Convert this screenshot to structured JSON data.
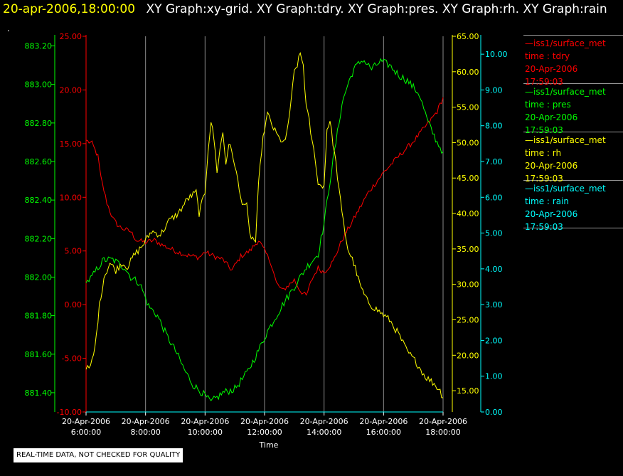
{
  "header": {
    "timestamp": "20-apr-2006,18:00:00",
    "graphs": [
      "XY Graph:xy-grid.",
      "XY Graph:tdry.",
      "XY Graph:pres.",
      "XY Graph:rh.",
      "XY Graph:rain"
    ],
    "marker": "."
  },
  "legend": [
    {
      "label": "iss1/surface_met",
      "var": "time : tdry",
      "date": "20-Apr-2006",
      "time": "17:59:03",
      "color": "#ff0000"
    },
    {
      "label": "iss1/surface_met",
      "var": "time : pres",
      "date": "20-Apr-2006",
      "time": "17:59:03",
      "color": "#00ff00"
    },
    {
      "label": "iss1/surface_met",
      "var": "time : rh",
      "date": "20-Apr-2006",
      "time": "17:59:03",
      "color": "#ffff00"
    },
    {
      "label": "iss1/surface_met",
      "var": "time : rain",
      "date": "20-Apr-2006",
      "time": "17:59:03",
      "color": "#00ffff"
    }
  ],
  "footer": "REAL-TIME DATA, NOT CHECKED FOR QUALITY",
  "chart_data": {
    "type": "line",
    "xlabel": "Time",
    "x_ticks": [
      {
        "date": "20-Apr-2006",
        "time": "6:00:00"
      },
      {
        "date": "20-Apr-2006",
        "time": "8:00:00"
      },
      {
        "date": "20-Apr-2006",
        "time": "10:00:00"
      },
      {
        "date": "20-Apr-2006",
        "time": "12:00:00"
      },
      {
        "date": "20-Apr-2006",
        "time": "14:00:00"
      },
      {
        "date": "20-Apr-2006",
        "time": "16:00:00"
      },
      {
        "date": "20-Apr-2006",
        "time": "18:00:00"
      }
    ],
    "x_range_hours": [
      6,
      18
    ],
    "grid": "vertical",
    "axes": {
      "tdry": {
        "color": "#ff0000",
        "range": [
          -10,
          25
        ],
        "ticks": [
          "25.00",
          "20.00",
          "15.00",
          "10.00",
          "5.00",
          "0.00",
          "-5.00",
          "-10.00"
        ]
      },
      "pres": {
        "color": "#00ff00",
        "range": [
          881.3,
          883.25
        ],
        "ticks": [
          "883.20",
          "883.00",
          "882.80",
          "882.60",
          "882.40",
          "882.20",
          "882.00",
          "881.80",
          "881.60",
          "881.40"
        ]
      },
      "rh": {
        "color": "#ffff00",
        "range": [
          12,
          65
        ],
        "ticks": [
          "65.00",
          "60.00",
          "55.00",
          "50.00",
          "45.00",
          "40.00",
          "35.00",
          "30.00",
          "25.00",
          "20.00",
          "15.00"
        ]
      },
      "rain": {
        "color": "#00ffff",
        "range": [
          0,
          10.5
        ],
        "ticks": [
          "10.00",
          "9.00",
          "8.00",
          "7.00",
          "6.00",
          "5.00",
          "4.00",
          "3.00",
          "2.00",
          "1.00",
          "0.00"
        ]
      }
    },
    "series": [
      {
        "name": "tdry",
        "color": "#ff0000",
        "points": [
          [
            6.0,
            15.3
          ],
          [
            6.2,
            15.0
          ],
          [
            6.4,
            13.8
          ],
          [
            6.5,
            11.8
          ],
          [
            6.7,
            9.5
          ],
          [
            6.9,
            8.0
          ],
          [
            7.1,
            7.3
          ],
          [
            7.3,
            7.0
          ],
          [
            7.5,
            6.8
          ],
          [
            7.7,
            6.0
          ],
          [
            8.0,
            5.8
          ],
          [
            8.3,
            6.0
          ],
          [
            8.6,
            5.5
          ],
          [
            9.0,
            5.0
          ],
          [
            9.4,
            4.6
          ],
          [
            9.8,
            4.4
          ],
          [
            10.0,
            4.9
          ],
          [
            10.3,
            4.5
          ],
          [
            10.6,
            4.2
          ],
          [
            10.9,
            3.2
          ],
          [
            11.2,
            4.5
          ],
          [
            11.5,
            5.0
          ],
          [
            11.8,
            6.0
          ],
          [
            12.0,
            5.0
          ],
          [
            12.2,
            4.0
          ],
          [
            12.4,
            2.0
          ],
          [
            12.6,
            1.3
          ],
          [
            12.8,
            1.8
          ],
          [
            13.0,
            2.3
          ],
          [
            13.2,
            1.3
          ],
          [
            13.4,
            0.8
          ],
          [
            13.6,
            2.4
          ],
          [
            13.8,
            3.4
          ],
          [
            14.0,
            3.0
          ],
          [
            14.3,
            4.0
          ],
          [
            14.6,
            6.0
          ],
          [
            15.0,
            8.0
          ],
          [
            15.5,
            10.5
          ],
          [
            16.0,
            12.3
          ],
          [
            16.5,
            13.8
          ],
          [
            17.0,
            15.2
          ],
          [
            17.5,
            16.9
          ],
          [
            17.8,
            18.0
          ],
          [
            18.0,
            19.3
          ]
        ]
      },
      {
        "name": "pres",
        "color": "#00ff00",
        "points": [
          [
            6.0,
            881.97
          ],
          [
            6.2,
            882.0
          ],
          [
            6.4,
            882.05
          ],
          [
            6.6,
            882.09
          ],
          [
            6.9,
            882.09
          ],
          [
            7.1,
            882.07
          ],
          [
            7.3,
            882.05
          ],
          [
            7.5,
            882.0
          ],
          [
            7.8,
            881.97
          ],
          [
            8.1,
            881.85
          ],
          [
            8.4,
            881.8
          ],
          [
            8.7,
            881.7
          ],
          [
            9.0,
            881.62
          ],
          [
            9.3,
            881.52
          ],
          [
            9.6,
            881.44
          ],
          [
            9.9,
            881.4
          ],
          [
            10.2,
            881.35
          ],
          [
            10.6,
            881.4
          ],
          [
            11.0,
            881.42
          ],
          [
            11.4,
            881.5
          ],
          [
            11.8,
            881.62
          ],
          [
            12.1,
            881.72
          ],
          [
            12.4,
            881.8
          ],
          [
            12.7,
            881.88
          ],
          [
            13.0,
            881.95
          ],
          [
            13.4,
            882.05
          ],
          [
            13.8,
            882.12
          ],
          [
            14.0,
            882.28
          ],
          [
            14.2,
            882.5
          ],
          [
            14.4,
            882.7
          ],
          [
            14.6,
            882.9
          ],
          [
            14.8,
            883.0
          ],
          [
            15.0,
            883.08
          ],
          [
            15.3,
            883.13
          ],
          [
            15.6,
            883.08
          ],
          [
            15.9,
            883.12
          ],
          [
            16.2,
            883.1
          ],
          [
            16.5,
            883.05
          ],
          [
            16.8,
            883.02
          ],
          [
            17.2,
            882.95
          ],
          [
            17.5,
            882.8
          ],
          [
            17.8,
            882.7
          ],
          [
            18.0,
            882.65
          ]
        ]
      },
      {
        "name": "rh",
        "color": "#ffff00",
        "points": [
          [
            6.0,
            18.0
          ],
          [
            6.15,
            18.3
          ],
          [
            6.3,
            21.0
          ],
          [
            6.45,
            27.0
          ],
          [
            6.6,
            31.0
          ],
          [
            6.8,
            33.0
          ],
          [
            7.0,
            32.0
          ],
          [
            7.2,
            33.0
          ],
          [
            7.4,
            32.5
          ],
          [
            7.6,
            34.0
          ],
          [
            7.9,
            35.5
          ],
          [
            8.2,
            37.5
          ],
          [
            8.5,
            37.0
          ],
          [
            8.8,
            39.0
          ],
          [
            9.1,
            40.0
          ],
          [
            9.4,
            42.0
          ],
          [
            9.7,
            43.0
          ],
          [
            9.8,
            40.0
          ],
          [
            10.0,
            43.0
          ],
          [
            10.1,
            49.0
          ],
          [
            10.2,
            53.0
          ],
          [
            10.3,
            50.5
          ],
          [
            10.4,
            46.0
          ],
          [
            10.5,
            49.0
          ],
          [
            10.6,
            51.5
          ],
          [
            10.7,
            47.0
          ],
          [
            10.8,
            50.0
          ],
          [
            11.0,
            47.0
          ],
          [
            11.2,
            42.0
          ],
          [
            11.4,
            41.0
          ],
          [
            11.5,
            37.0
          ],
          [
            11.7,
            36.0
          ],
          [
            11.8,
            44.0
          ],
          [
            11.9,
            49.0
          ],
          [
            12.0,
            52.0
          ],
          [
            12.1,
            54.0
          ],
          [
            12.3,
            52.0
          ],
          [
            12.5,
            50.5
          ],
          [
            12.7,
            50.0
          ],
          [
            12.9,
            56.0
          ],
          [
            13.0,
            60.0
          ],
          [
            13.1,
            61.0
          ],
          [
            13.2,
            62.5
          ],
          [
            13.3,
            61.0
          ],
          [
            13.4,
            55.0
          ],
          [
            13.5,
            53.0
          ],
          [
            13.6,
            50.0
          ],
          [
            13.7,
            48.0
          ],
          [
            13.8,
            44.0
          ],
          [
            14.0,
            44.0
          ],
          [
            14.1,
            52.0
          ],
          [
            14.2,
            53.0
          ],
          [
            14.3,
            50.0
          ],
          [
            14.4,
            47.0
          ],
          [
            14.6,
            40.0
          ],
          [
            14.8,
            35.0
          ],
          [
            15.0,
            33.0
          ],
          [
            15.2,
            30.0
          ],
          [
            15.4,
            28.0
          ],
          [
            15.6,
            27.0
          ],
          [
            15.9,
            26.0
          ],
          [
            16.2,
            25.0
          ],
          [
            16.5,
            23.0
          ],
          [
            16.8,
            20.5
          ],
          [
            17.1,
            19.0
          ],
          [
            17.4,
            17.0
          ],
          [
            17.7,
            16.0
          ],
          [
            17.9,
            15.0
          ],
          [
            18.0,
            14.0
          ]
        ]
      },
      {
        "name": "rain",
        "color": "#00ffff",
        "points": [
          [
            6.0,
            0.0
          ],
          [
            18.0,
            0.0
          ]
        ]
      }
    ]
  }
}
